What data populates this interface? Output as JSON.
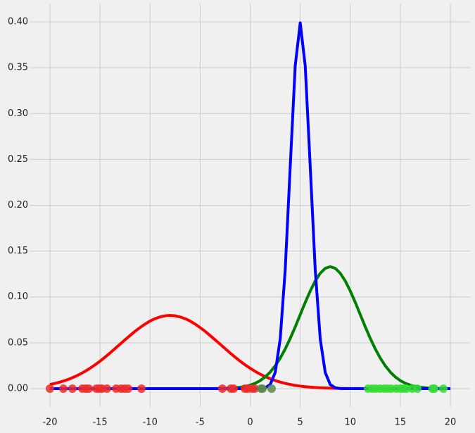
{
  "chart_data": {
    "type": "line",
    "x": [
      -20,
      -19.5,
      -19,
      -18.5,
      -18,
      -17.5,
      -17,
      -16.5,
      -16,
      -15.5,
      -15,
      -14.5,
      -14,
      -13.5,
      -13,
      -12.5,
      -12,
      -11.5,
      -11,
      -10.5,
      -10,
      -9.5,
      -9,
      -8.5,
      -8,
      -7.5,
      -7,
      -6.5,
      -6,
      -5.5,
      -5,
      -4.5,
      -4,
      -3.5,
      -3,
      -2.5,
      -2,
      -1.5,
      -1,
      -0.5,
      0,
      0.5,
      1,
      1.5,
      2,
      2.5,
      3,
      3.5,
      4,
      4.5,
      5,
      5.5,
      6,
      6.5,
      7,
      7.5,
      8,
      8.5,
      9,
      9.5,
      10,
      10.5,
      11,
      11.5,
      12,
      12.5,
      13,
      13.5,
      14,
      14.5,
      15,
      15.5,
      16,
      16.5,
      17,
      17.5,
      18,
      18.5,
      19,
      19.5,
      20
    ],
    "series": [
      {
        "color": "#ff0000",
        "values": [
          0.0045,
          0.0057,
          0.0071,
          0.0088,
          0.0108,
          0.0131,
          0.0158,
          0.0188,
          0.0222,
          0.0259,
          0.0299,
          0.0343,
          0.0388,
          0.0436,
          0.0484,
          0.0532,
          0.0579,
          0.0625,
          0.0666,
          0.0704,
          0.0737,
          0.0763,
          0.0782,
          0.0794,
          0.0798,
          0.0794,
          0.0782,
          0.0763,
          0.0737,
          0.0704,
          0.0666,
          0.0625,
          0.0579,
          0.0532,
          0.0484,
          0.0436,
          0.0388,
          0.0343,
          0.0299,
          0.0259,
          0.0222,
          0.0188,
          0.0158,
          0.0131,
          0.0108,
          0.0088,
          0.0071,
          0.0057,
          0.0045,
          0.0035,
          0.0027,
          0.0021,
          0.0016,
          0.0012,
          0.0009,
          0.0007,
          0.0005,
          0.0003,
          0.0002,
          0.0002,
          0.0001,
          0.0001,
          0.0001,
          0,
          0,
          0,
          0,
          0,
          0,
          0,
          0,
          0,
          0,
          0,
          0,
          0,
          0,
          0,
          0,
          0,
          0
        ]
      },
      {
        "color": "#008000",
        "values": [
          0,
          0,
          0,
          0,
          0,
          0,
          0,
          0,
          0,
          0,
          0,
          0,
          0,
          0,
          0,
          0,
          0,
          0,
          0,
          0,
          0,
          0,
          0,
          0,
          0,
          0,
          0,
          0,
          0,
          0,
          0,
          0,
          0,
          0.0001,
          0.0002,
          0.0003,
          0.0005,
          0.0009,
          0.0015,
          0.0024,
          0.0038,
          0.0058,
          0.0087,
          0.0127,
          0.018,
          0.0248,
          0.0332,
          0.0432,
          0.0547,
          0.0673,
          0.0807,
          0.094,
          0.1065,
          0.1174,
          0.1258,
          0.1312,
          0.133,
          0.1312,
          0.1258,
          0.1174,
          0.1065,
          0.094,
          0.0807,
          0.0673,
          0.0547,
          0.0432,
          0.0332,
          0.0248,
          0.018,
          0.0127,
          0.0087,
          0.0058,
          0.0038,
          0.0024,
          0.0015,
          0.0009,
          0.0005,
          0.0003,
          0.0002,
          0.0001,
          0
        ]
      },
      {
        "color": "#0000ff",
        "values": [
          0,
          0,
          0,
          0,
          0,
          0,
          0,
          0,
          0,
          0,
          0,
          0,
          0,
          0,
          0,
          0,
          0,
          0,
          0,
          0,
          0,
          0,
          0,
          0,
          0,
          0,
          0,
          0,
          0,
          0,
          0,
          0,
          0,
          0,
          0,
          0,
          0,
          0,
          0,
          0,
          0,
          0,
          0.0001,
          0.0009,
          0.0044,
          0.0175,
          0.054,
          0.1295,
          0.242,
          0.3521,
          0.3989,
          0.3521,
          0.242,
          0.1295,
          0.054,
          0.0175,
          0.0044,
          0.0009,
          0.0001,
          0,
          0,
          0,
          0,
          0,
          0,
          0,
          0,
          0,
          0,
          0,
          0,
          0,
          0,
          0,
          0,
          0,
          0,
          0,
          0,
          0,
          0
        ]
      }
    ],
    "points": [
      {
        "color": "#ee2a2a",
        "x": [
          -20,
          -18.66,
          -17.75,
          -16.77,
          -16.42,
          -16.13,
          -15.36,
          -15.08,
          -14.8,
          -14.31,
          -13.39,
          -12.9,
          -12.55,
          -12.19,
          -10.86,
          -2.78,
          -1.93,
          -1.65,
          -0.53,
          -0.25,
          0.18,
          0.46
        ],
        "values": [
          0,
          0,
          0,
          0,
          0,
          0,
          0,
          0,
          0,
          0,
          0,
          0,
          0,
          0,
          0,
          0,
          0,
          0,
          0,
          0,
          0,
          0
        ]
      },
      {
        "color": "#5a8a4a",
        "x": [
          1.09,
          1.23,
          2.14
        ],
        "values": [
          0,
          0,
          0
        ]
      },
      {
        "color": "#33dd33",
        "x": [
          11.78,
          12.2,
          12.55,
          12.97,
          13.39,
          13.74,
          14.1,
          14.6,
          15.0,
          15.3,
          15.6,
          16.2,
          16.7,
          18.2,
          18.4,
          19.3
        ],
        "values": [
          0,
          0,
          0,
          0,
          0,
          0,
          0,
          0,
          0,
          0,
          0,
          0,
          0,
          0,
          0,
          0
        ]
      }
    ],
    "xlim": [
      -22,
      22
    ],
    "ylim": [
      -0.02,
      0.42
    ],
    "xticks": [
      -20,
      -15,
      -10,
      -5,
      0,
      5,
      10,
      15,
      20
    ],
    "yticks": [
      {
        "value": 0,
        "label": "0.00"
      },
      {
        "value": 0.05,
        "label": "0.05"
      },
      {
        "value": 0.1,
        "label": "0.10"
      },
      {
        "value": 0.15,
        "label": "0.15"
      },
      {
        "value": 0.2,
        "label": "0.20"
      },
      {
        "value": 0.25,
        "label": "0.25"
      },
      {
        "value": 0.3,
        "label": "0.30"
      },
      {
        "value": 0.35,
        "label": "0.35"
      },
      {
        "value": 0.4,
        "label": "0.40"
      }
    ],
    "grid": true
  }
}
